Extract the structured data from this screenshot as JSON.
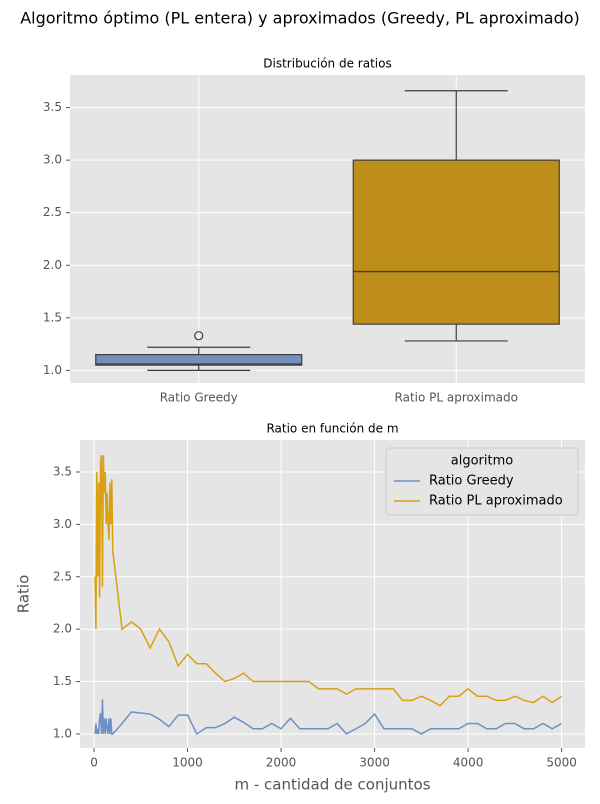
{
  "title": "Algoritmo óptimo (PL entera) y aproximados (Greedy, PL aproximado)",
  "chart_data": [
    {
      "type": "box",
      "title": "Distribución de ratios",
      "categories": [
        "Ratio Greedy",
        "Ratio PL aproximado"
      ],
      "boxes": [
        {
          "whislo": 1.0,
          "q1": 1.05,
          "median": 1.06,
          "q3": 1.15,
          "whishi": 1.22,
          "fliers": [
            1.33
          ],
          "color": "#7590bd"
        },
        {
          "whislo": 1.28,
          "q1": 1.44,
          "median": 1.94,
          "q3": 3.0,
          "whishi": 3.66,
          "fliers": [],
          "color": "#bd8e1a"
        }
      ],
      "ylim": [
        0.88,
        3.81
      ],
      "yticks": [
        {
          "value": 1,
          "label": "1.0"
        },
        {
          "value": 1.5,
          "label": "1.5"
        },
        {
          "value": 2,
          "label": "2.0"
        },
        {
          "value": 2.5,
          "label": "2.5"
        },
        {
          "value": 3,
          "label": "3.0"
        },
        {
          "value": 3.5,
          "label": "3.5"
        }
      ],
      "grid": true
    },
    {
      "type": "line",
      "title": "Ratio en función de m",
      "xlabel": "m - cantidad de conjuntos",
      "ylabel": "Ratio",
      "legend_title": "algoritmo",
      "legend": "upper right",
      "x": [
        10,
        20,
        30,
        40,
        50,
        60,
        70,
        80,
        90,
        100,
        110,
        120,
        130,
        140,
        150,
        160,
        170,
        180,
        190,
        200,
        300,
        400,
        500,
        600,
        700,
        800,
        900,
        1000,
        1100,
        1200,
        1300,
        1400,
        1500,
        1600,
        1700,
        1800,
        1900,
        2000,
        2100,
        2200,
        2300,
        2400,
        2500,
        2600,
        2700,
        2800,
        2900,
        3000,
        3100,
        3200,
        3300,
        3400,
        3500,
        3600,
        3700,
        3800,
        3900,
        4000,
        4100,
        4200,
        4300,
        4400,
        4500,
        4600,
        4700,
        4800,
        4900,
        5000
      ],
      "series": [
        {
          "name": "Ratio Greedy",
          "color": "#6f8fc6",
          "values": [
            1.0,
            1.1,
            1.0,
            1.05,
            1.0,
            1.15,
            1.2,
            1.0,
            1.33,
            1.0,
            1.15,
            1.0,
            1.15,
            1.05,
            1.0,
            1.15,
            1.0,
            1.15,
            1.0,
            1.0,
            1.1,
            1.21,
            1.2,
            1.19,
            1.14,
            1.07,
            1.18,
            1.18,
            1.0,
            1.06,
            1.06,
            1.1,
            1.16,
            1.11,
            1.05,
            1.05,
            1.1,
            1.05,
            1.15,
            1.05,
            1.05,
            1.05,
            1.05,
            1.1,
            1.0,
            1.05,
            1.1,
            1.19,
            1.05,
            1.05,
            1.05,
            1.05,
            1.0,
            1.05,
            1.05,
            1.05,
            1.05,
            1.1,
            1.1,
            1.05,
            1.05,
            1.1,
            1.1,
            1.05,
            1.05,
            1.1,
            1.05,
            1.1
          ]
        },
        {
          "name": "Ratio PL aproximado",
          "color": "#d9a112",
          "values": [
            2.5,
            2.0,
            3.5,
            2.5,
            3.4,
            2.3,
            3.6,
            3.66,
            2.4,
            3.66,
            3.3,
            3.5,
            3.0,
            3.3,
            3.0,
            2.85,
            3.4,
            3.0,
            3.43,
            2.75,
            2.0,
            2.07,
            2.0,
            1.82,
            2.0,
            1.88,
            1.65,
            1.76,
            1.67,
            1.67,
            1.58,
            1.5,
            1.53,
            1.58,
            1.5,
            1.5,
            1.5,
            1.5,
            1.5,
            1.5,
            1.5,
            1.43,
            1.43,
            1.43,
            1.38,
            1.43,
            1.43,
            1.43,
            1.43,
            1.43,
            1.32,
            1.32,
            1.36,
            1.32,
            1.27,
            1.36,
            1.36,
            1.43,
            1.36,
            1.36,
            1.32,
            1.32,
            1.36,
            1.32,
            1.3,
            1.36,
            1.3,
            1.36
          ]
        }
      ],
      "xlim": [
        -150,
        5250
      ],
      "xticks": [
        0,
        1000,
        2000,
        3000,
        4000,
        5000
      ],
      "ylim": [
        0.866,
        3.805
      ],
      "yticks": [
        {
          "value": 1,
          "label": "1.0"
        },
        {
          "value": 1.5,
          "label": "1.5"
        },
        {
          "value": 2,
          "label": "2.0"
        },
        {
          "value": 2.5,
          "label": "2.5"
        },
        {
          "value": 3,
          "label": "3.0"
        },
        {
          "value": 3.5,
          "label": "3.5"
        }
      ],
      "grid": true
    }
  ]
}
